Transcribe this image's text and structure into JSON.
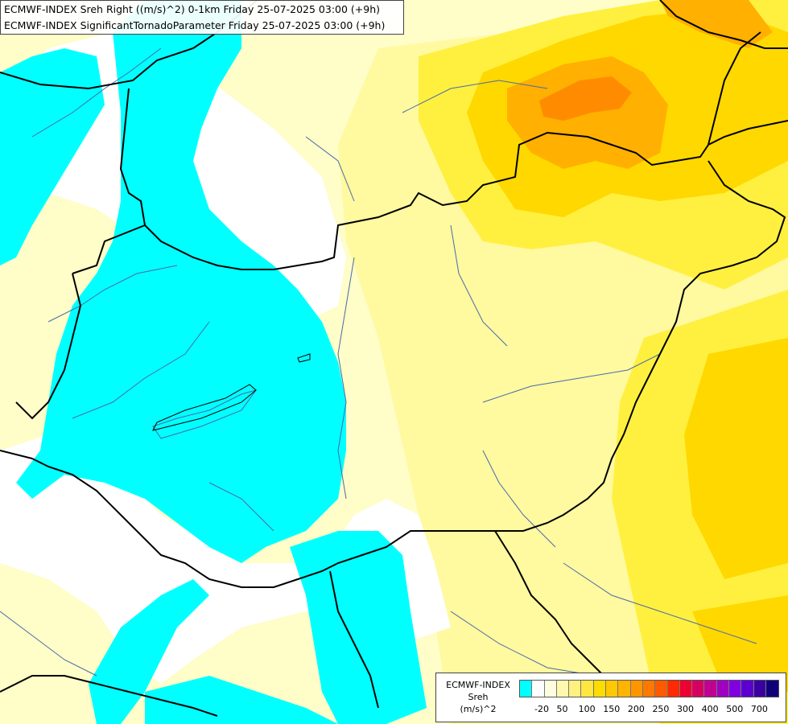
{
  "header": {
    "line1": "ECMWF-INDEX Sreh Right ((m/s)^2) 0-1km Friday 25-07-2025 03:00 (+9h)",
    "line2": "ECMWF-INDEX SignificantTornadoParameter Friday 25-07-2025 03:00 (+9h)"
  },
  "legend": {
    "title1": "ECMWF-INDEX",
    "title2": "Sreh",
    "unit": "(m/s)^2",
    "colors": [
      "#00ffff",
      "#ffffff",
      "#fffde0",
      "#fff9b0",
      "#fff080",
      "#ffe640",
      "#ffdc00",
      "#ffc800",
      "#ffb400",
      "#ff9600",
      "#ff7800",
      "#ff5a00",
      "#ff2a00",
      "#ee0030",
      "#d60060",
      "#c00090",
      "#a000c0",
      "#8000e0",
      "#5a00d0",
      "#3a00a0",
      "#10007a"
    ],
    "ticks": [
      "-20",
      "50",
      "100",
      "150",
      "200",
      "250",
      "300",
      "400",
      "500",
      "700"
    ]
  },
  "map": {
    "colors": {
      "cyan": "#00ffff",
      "white": "#ffffff",
      "pale": "#fffdc8",
      "light": "#fff9a0",
      "yellow": "#fff040",
      "gold": "#ffd800",
      "orange": "#ffb000",
      "darkorange": "#ff8c00",
      "border": "#000000",
      "river": "#4a6aa8"
    }
  }
}
